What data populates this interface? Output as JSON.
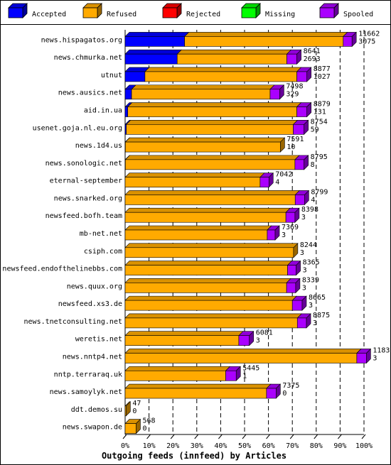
{
  "chart_data": {
    "type": "bar",
    "title": "Outgoing feeds (innfeed) by Articles",
    "xlim": [
      0,
      100
    ],
    "x_ticks": [
      "0%",
      "10%",
      "20%",
      "30%",
      "40%",
      "50%",
      "60%",
      "70%",
      "80%",
      "90%",
      "100%"
    ],
    "stacked": true,
    "orientation": "horizontal",
    "legend_position": "top",
    "legend": [
      {
        "name": "Accepted",
        "color": "#0000ff"
      },
      {
        "name": "Refused",
        "color": "#ffaa00"
      },
      {
        "name": "Rejected",
        "color": "#ff0000"
      },
      {
        "name": "Missing",
        "color": "#00ff00"
      },
      {
        "name": "Spooled",
        "color": "#aa00ff"
      }
    ],
    "rows": [
      {
        "name": "news.hispagatos.org",
        "offered": "11662",
        "accepted": "3075",
        "seg": [
          24.9,
          66.4,
          0,
          0,
          3.7
        ]
      },
      {
        "name": "news.chmurka.net",
        "offered": "8641",
        "accepted": "2693",
        "seg": [
          21.8,
          45.9,
          0,
          0,
          4.2
        ]
      },
      {
        "name": "utnut",
        "offered": "8877",
        "accepted": "1027",
        "seg": [
          8.3,
          63.6,
          0,
          0,
          4.2
        ]
      },
      {
        "name": "news.ausics.net",
        "offered": "7498",
        "accepted": "329",
        "seg": [
          2.7,
          58.0,
          0,
          0,
          4.0
        ]
      },
      {
        "name": "aid.in.ua",
        "offered": "8879",
        "accepted": "131",
        "seg": [
          1.1,
          70.8,
          0,
          0,
          4.2
        ]
      },
      {
        "name": "usenet.goja.nl.eu.org",
        "offered": "8754",
        "accepted": "59",
        "seg": [
          0.5,
          69.9,
          0,
          0,
          4.5
        ]
      },
      {
        "name": "news.1d4.us",
        "offered": "7591",
        "accepted": "10",
        "seg": [
          0.1,
          64.9,
          0,
          0,
          0
        ]
      },
      {
        "name": "news.sonologic.net",
        "offered": "8795",
        "accepted": "8",
        "seg": [
          0.1,
          71.0,
          0,
          0,
          3.8
        ]
      },
      {
        "name": "eternal-september",
        "offered": "7042",
        "accepted": "4",
        "seg": [
          0,
          56.5,
          0,
          0,
          3.7
        ]
      },
      {
        "name": "news.snarked.org",
        "offered": "8799",
        "accepted": "4",
        "seg": [
          0,
          71.2,
          0,
          0,
          3.9
        ]
      },
      {
        "name": "newsfeed.bofh.team",
        "offered": "8398",
        "accepted": "3",
        "seg": [
          0,
          67.3,
          0,
          0,
          3.8
        ]
      },
      {
        "name": "mb-net.net",
        "offered": "7369",
        "accepted": "3",
        "seg": [
          0,
          59.5,
          0,
          0,
          3.3
        ]
      },
      {
        "name": "csiph.com",
        "offered": "8244",
        "accepted": "3",
        "seg": [
          0,
          70.5,
          0,
          0,
          0
        ]
      },
      {
        "name": "newsfeed.endofthelinebbs.com",
        "offered": "8365",
        "accepted": "3",
        "seg": [
          0,
          68.0,
          0,
          0,
          3.6
        ]
      },
      {
        "name": "news.quux.org",
        "offered": "8339",
        "accepted": "3",
        "seg": [
          0,
          67.6,
          0,
          0,
          3.8
        ]
      },
      {
        "name": "newsfeed.xs3.de",
        "offered": "8665",
        "accepted": "3",
        "seg": [
          0,
          70.0,
          0,
          0,
          4.1
        ]
      },
      {
        "name": "news.tnetconsulting.net",
        "offered": "8875",
        "accepted": "3",
        "seg": [
          0,
          72.1,
          0,
          0,
          3.8
        ]
      },
      {
        "name": "weretis.net",
        "offered": "6081",
        "accepted": "3",
        "seg": [
          0,
          47.6,
          0,
          0,
          4.4
        ]
      },
      {
        "name": "news.nntp4.net",
        "offered": "11836",
        "accepted": "3",
        "seg": [
          0,
          97.0,
          0,
          0,
          4.0
        ]
      },
      {
        "name": "nntp.terraraq.uk",
        "offered": "5445",
        "accepted": "1",
        "seg": [
          0,
          42.1,
          0,
          0,
          4.4
        ]
      },
      {
        "name": "news.samoylyk.net",
        "offered": "7375",
        "accepted": "0",
        "seg": [
          0,
          59.2,
          0,
          0,
          4.0
        ]
      },
      {
        "name": "ddt.demos.su",
        "offered": "47",
        "accepted": "0",
        "seg": [
          0,
          0.4,
          0,
          0,
          0
        ]
      },
      {
        "name": "news.swapon.de",
        "offered": "568",
        "accepted": "0",
        "seg": [
          0,
          4.6,
          0,
          0,
          0
        ]
      }
    ]
  }
}
